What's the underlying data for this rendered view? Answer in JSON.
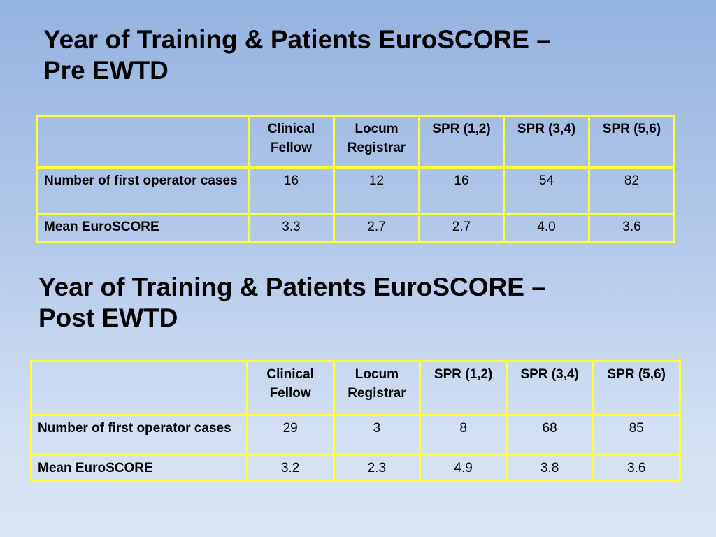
{
  "pre": {
    "title_line1": "Year of Training & Patients EuroSCORE –",
    "title_line2": "Pre EWTD",
    "headers": [
      "Clinical Fellow",
      "Locum Registrar",
      "SPR (1,2)",
      "SPR (3,4)",
      "SPR (5,6)"
    ],
    "rows": [
      {
        "label": "Number of first operator cases",
        "values": [
          "16",
          "12",
          "16",
          "54",
          "82"
        ]
      },
      {
        "label": "Mean EuroSCORE",
        "values": [
          "3.3",
          "2.7",
          "2.7",
          "4.0",
          "3.6"
        ]
      }
    ]
  },
  "post": {
    "title_line1": "Year of Training & Patients EuroSCORE –",
    "title_line2": "Post EWTD",
    "headers": [
      "Clinical Fellow",
      "Locum Registrar",
      "SPR (1,2)",
      "SPR (3,4)",
      "SPR (5,6)"
    ],
    "rows": [
      {
        "label": "Number of first operator cases",
        "values": [
          "29",
          "3",
          "8",
          "68",
          "85"
        ]
      },
      {
        "label": "Mean EuroSCORE",
        "values": [
          "3.2",
          "2.3",
          "4.9",
          "3.8",
          "3.6"
        ]
      }
    ]
  }
}
